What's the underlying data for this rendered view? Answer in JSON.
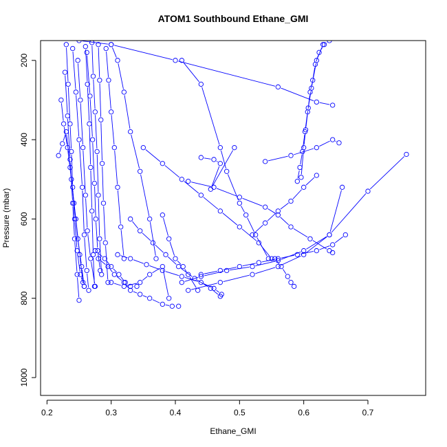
{
  "chart_data": {
    "type": "line",
    "title": "ATOM1 Southbound Ethane_GMI",
    "xlabel": "Ethane_GMI",
    "ylabel": "Pressure (mbar)",
    "xlim": [
      0.19,
      0.79
    ],
    "ylim": [
      1045,
      150
    ],
    "y_reversed": true,
    "x_ticks": [
      "0.2",
      "0.3",
      "0.4",
      "0.5",
      "0.6",
      "0.7"
    ],
    "y_ticks": [
      "200",
      "400",
      "600",
      "800",
      "1000"
    ],
    "grid": false,
    "legend": "none",
    "marker": "open-circle",
    "series_color": "#0000ff",
    "series": [
      {
        "x": [
          0.23,
          0.233,
          0.236,
          0.238,
          0.24,
          0.243,
          0.247,
          0.252,
          0.258
        ],
        "y": [
          160,
          260,
          360,
          430,
          520,
          600,
          680,
          740,
          770
        ]
      },
      {
        "x": [
          0.218,
          0.224,
          0.23,
          0.236,
          0.242,
          0.248,
          0.254,
          0.258
        ],
        "y": [
          440,
          410,
          380,
          470,
          560,
          650,
          720,
          770
        ]
      },
      {
        "x": [
          0.24,
          0.245,
          0.25,
          0.255,
          0.258,
          0.262,
          0.265
        ],
        "y": [
          170,
          280,
          400,
          520,
          640,
          730,
          780
        ]
      },
      {
        "x": [
          0.222,
          0.226,
          0.232,
          0.238,
          0.245,
          0.251,
          0.256
        ],
        "y": [
          300,
          360,
          420,
          500,
          600,
          690,
          760
        ]
      },
      {
        "x": [
          0.26,
          0.263,
          0.266,
          0.268,
          0.27,
          0.272,
          0.274
        ],
        "y": [
          165,
          260,
          360,
          470,
          580,
          690,
          770
        ]
      },
      {
        "x": [
          0.27,
          0.272,
          0.275,
          0.278,
          0.28,
          0.282,
          0.285
        ],
        "y": [
          155,
          240,
          330,
          430,
          540,
          650,
          740
        ]
      },
      {
        "x": [
          0.28,
          0.282,
          0.284,
          0.286,
          0.288,
          0.291,
          0.295
        ],
        "y": [
          160,
          250,
          350,
          460,
          560,
          660,
          760
        ]
      },
      {
        "x": [
          0.248,
          0.252,
          0.256,
          0.26,
          0.263,
          0.268,
          0.275
        ],
        "y": [
          200,
          300,
          420,
          540,
          630,
          700,
          770
        ]
      },
      {
        "x": [
          0.228,
          0.232,
          0.236,
          0.24,
          0.243,
          0.247,
          0.25
        ],
        "y": [
          230,
          340,
          450,
          560,
          650,
          740,
          805
        ]
      },
      {
        "x": [
          0.262,
          0.267,
          0.271,
          0.274,
          0.276,
          0.279,
          0.283
        ],
        "y": [
          180,
          290,
          400,
          510,
          600,
          680,
          730
        ]
      },
      {
        "x": [
          0.292,
          0.296,
          0.3,
          0.305,
          0.31,
          0.315,
          0.32
        ],
        "y": [
          170,
          250,
          330,
          420,
          520,
          620,
          700
        ]
      },
      {
        "x": [
          0.3,
          0.31,
          0.32,
          0.33,
          0.345,
          0.36,
          0.37
        ],
        "y": [
          160,
          200,
          280,
          380,
          480,
          600,
          700
        ]
      },
      {
        "x": [
          0.275,
          0.29,
          0.3,
          0.312,
          0.322,
          0.33,
          0.34
        ],
        "y": [
          680,
          700,
          720,
          740,
          760,
          770,
          770
        ]
      },
      {
        "x": [
          0.28,
          0.295,
          0.305,
          0.32,
          0.33,
          0.345,
          0.36,
          0.38,
          0.395,
          0.405
        ],
        "y": [
          700,
          720,
          740,
          760,
          780,
          790,
          800,
          815,
          820,
          820
        ]
      },
      {
        "x": [
          0.33,
          0.345,
          0.365,
          0.385,
          0.405,
          0.43,
          0.455,
          0.47
        ],
        "y": [
          600,
          630,
          660,
          690,
          720,
          750,
          775,
          795
        ]
      },
      {
        "x": [
          0.31,
          0.33,
          0.355,
          0.38,
          0.41,
          0.44,
          0.46,
          0.472
        ],
        "y": [
          690,
          700,
          715,
          730,
          745,
          760,
          775,
          790
        ]
      },
      {
        "x": [
          0.35,
          0.38,
          0.41,
          0.44,
          0.47,
          0.5,
          0.53,
          0.55
        ],
        "y": [
          420,
          460,
          500,
          540,
          580,
          620,
          660,
          700
        ]
      },
      {
        "x": [
          0.41,
          0.44,
          0.47,
          0.48,
          0.5,
          0.51,
          0.525,
          0.545
        ],
        "y": [
          200,
          260,
          420,
          480,
          560,
          590,
          640,
          700
        ]
      },
      {
        "x": [
          0.44,
          0.46,
          0.47,
          0.455,
          0.492
        ],
        "y": [
          445,
          450,
          460,
          525,
          420
        ]
      },
      {
        "x": [
          0.42,
          0.46,
          0.5,
          0.54,
          0.56,
          0.58,
          0.61,
          0.64,
          0.645
        ],
        "y": [
          505,
          520,
          545,
          570,
          590,
          620,
          650,
          680,
          685
        ]
      },
      {
        "x": [
          0.44,
          0.47,
          0.5,
          0.53,
          0.56,
          0.59,
          0.62,
          0.645,
          0.665
        ],
        "y": [
          740,
          730,
          720,
          710,
          700,
          690,
          680,
          665,
          640
        ]
      },
      {
        "x": [
          0.42,
          0.47,
          0.52,
          0.56,
          0.6,
          0.64,
          0.7,
          0.76
        ],
        "y": [
          780,
          760,
          740,
          720,
          690,
          640,
          530,
          437
        ]
      },
      {
        "x": [
          0.41,
          0.44,
          0.48,
          0.52,
          0.56,
          0.6,
          0.64,
          0.66
        ],
        "y": [
          760,
          745,
          730,
          720,
          705,
          680,
          640,
          520
        ]
      },
      {
        "x": [
          0.2,
          0.25,
          0.3,
          0.4,
          0.56,
          0.62,
          0.645
        ],
        "y": [
          140,
          150,
          160,
          200,
          267,
          305,
          313
        ]
      },
      {
        "x": [
          0.54,
          0.58,
          0.62,
          0.645,
          0.655
        ],
        "y": [
          455,
          440,
          420,
          400,
          408
        ]
      },
      {
        "x": [
          0.596,
          0.6,
          0.603,
          0.607,
          0.61,
          0.614,
          0.618,
          0.624,
          0.632,
          0.64
        ],
        "y": [
          495,
          420,
          375,
          320,
          280,
          250,
          210,
          180,
          160,
          150
        ]
      },
      {
        "x": [
          0.59,
          0.594,
          0.598,
          0.602,
          0.606,
          0.612,
          0.62,
          0.63
        ],
        "y": [
          505,
          470,
          430,
          380,
          330,
          270,
          200,
          160
        ]
      },
      {
        "x": [
          0.52,
          0.54,
          0.56,
          0.58,
          0.6,
          0.62
        ],
        "y": [
          640,
          610,
          580,
          555,
          520,
          490
        ]
      },
      {
        "x": [
          0.3,
          0.32,
          0.345,
          0.36,
          0.38,
          0.39
        ],
        "y": [
          760,
          770,
          760,
          740,
          720,
          800
        ]
      },
      {
        "x": [
          0.38,
          0.39,
          0.4,
          0.412,
          0.42,
          0.435
        ],
        "y": [
          590,
          650,
          700,
          720,
          740,
          780
        ]
      },
      {
        "x": [
          0.555,
          0.565,
          0.575,
          0.58,
          0.585
        ],
        "y": [
          700,
          720,
          745,
          760,
          770
        ]
      }
    ]
  }
}
